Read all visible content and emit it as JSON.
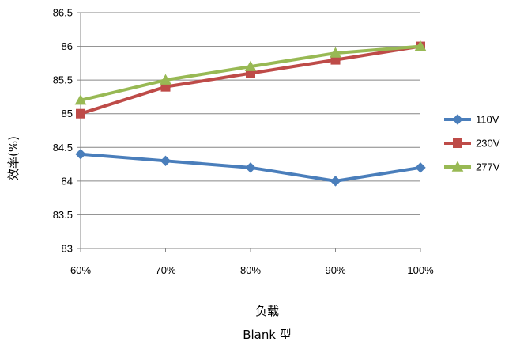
{
  "chart_data": {
    "type": "line",
    "title": "",
    "xlabel": "负载",
    "subtitle": "Blank 型",
    "ylabel": "效率(%)",
    "categories": [
      "60%",
      "70%",
      "80%",
      "90%",
      "100%"
    ],
    "ylim": [
      83,
      86.5
    ],
    "yticks": [
      "83",
      "83.5",
      "84",
      "84.5",
      "85",
      "85.5",
      "86",
      "86.5"
    ],
    "grid": true,
    "legend_position": "right",
    "series": [
      {
        "name": "110V",
        "values": [
          84.4,
          84.3,
          84.2,
          84.0,
          84.2
        ],
        "color": "#4a7ebb",
        "marker": "diamond"
      },
      {
        "name": "230V",
        "values": [
          85.0,
          85.4,
          85.6,
          85.8,
          86.0
        ],
        "color": "#be4b48",
        "marker": "square"
      },
      {
        "name": "277V",
        "values": [
          85.2,
          85.5,
          85.7,
          85.9,
          86.0
        ],
        "color": "#98b954",
        "marker": "triangle"
      }
    ]
  }
}
